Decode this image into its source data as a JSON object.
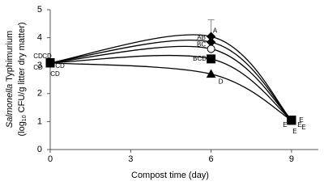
{
  "chart_data": {
    "type": "line",
    "ylabel": {
      "italic": "Salmonella",
      "rest": "Typhimurium",
      "line2_start": "(log",
      "subscript": "10",
      "line2_end": "CFU/g litter dry matter)"
    },
    "xlabel": "Compost time (day)",
    "x": [
      0,
      6,
      9
    ],
    "xlim": [
      0,
      10
    ],
    "xticks": [
      0,
      3,
      6,
      9
    ],
    "ylim": [
      0,
      5
    ],
    "yticks": [
      0,
      1,
      2,
      3,
      4,
      5
    ],
    "grid": false,
    "series": [
      {
        "color": "#000000",
        "marker": "diamond",
        "values": [
          3.1,
          4.04,
          1.05
        ],
        "errors": [
          null,
          0.6,
          null
        ],
        "letters": [
          "CD",
          "A",
          "E"
        ]
      },
      {
        "color": "#000000",
        "marker": "diamond",
        "values": [
          3.1,
          3.84,
          1.05
        ],
        "letters": [
          "CD",
          "AB",
          "E"
        ]
      },
      {
        "color": "#000000",
        "marker": "circle",
        "values": [
          3.1,
          3.6,
          1.05
        ],
        "letters": [
          "CD",
          "BC",
          "E"
        ]
      },
      {
        "color": "#000000",
        "marker": "square",
        "values": [
          3.1,
          3.24,
          1.05
        ],
        "letters": [
          "CD",
          "BCD",
          "E"
        ]
      },
      {
        "color": "#000000",
        "marker": "triangle",
        "values": [
          3.1,
          2.7,
          1.05
        ],
        "letters": [
          "CD",
          "D",
          "E"
        ]
      }
    ]
  }
}
